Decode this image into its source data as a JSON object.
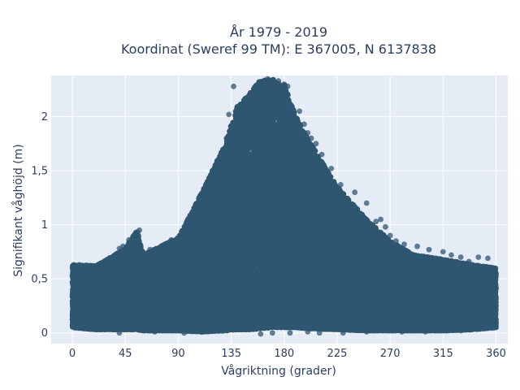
{
  "chart_data": {
    "type": "scatter",
    "title": "År 1979 - 2019",
    "subtitle": "Koordinat (Sweref 99 TM): E 367005, N 6137838",
    "xlabel": "Vågriktning (grader)",
    "ylabel": "Signifikant våghöjd (m)",
    "xlim": [
      -18,
      370
    ],
    "ylim": [
      -0.1,
      2.38
    ],
    "x_ticks": [
      {
        "value": 0,
        "label": "0"
      },
      {
        "value": 45,
        "label": "45"
      },
      {
        "value": 90,
        "label": "90"
      },
      {
        "value": 135,
        "label": "135"
      },
      {
        "value": 180,
        "label": "180"
      },
      {
        "value": 225,
        "label": "225"
      },
      {
        "value": 270,
        "label": "270"
      },
      {
        "value": 315,
        "label": "315"
      },
      {
        "value": 360,
        "label": "360"
      }
    ],
    "y_ticks": [
      {
        "value": 0,
        "label": "0"
      },
      {
        "value": 0.5,
        "label": "0,5"
      },
      {
        "value": 1,
        "label": "1"
      },
      {
        "value": 1.5,
        "label": "1,5"
      },
      {
        "value": 2,
        "label": "2"
      }
    ],
    "grid": true,
    "plot_background": "#e5ecf6",
    "grid_color": "#ffffff",
    "marker_color": "#2f5670",
    "marker_opacity": 0.75,
    "envelope": {
      "x": [
        0,
        20,
        45,
        55,
        60,
        90,
        110,
        130,
        140,
        150,
        160,
        170,
        180,
        190,
        200,
        225,
        250,
        270,
        290,
        315,
        340,
        360
      ],
      "y_max": [
        0.63,
        0.62,
        0.78,
        0.95,
        0.72,
        0.88,
        1.3,
        1.75,
        2.1,
        2.2,
        2.35,
        2.35,
        2.3,
        2.0,
        1.8,
        1.35,
        1.05,
        0.85,
        0.72,
        0.68,
        0.63,
        0.6
      ],
      "y_min": [
        0.05,
        0.03,
        0.03,
        0.03,
        0.02,
        0.02,
        0.01,
        0.02,
        0.03,
        0.03,
        0.04,
        0.05,
        0.05,
        0.05,
        0.04,
        0.03,
        0.02,
        0.02,
        0.02,
        0.02,
        0.03,
        0.05
      ]
    },
    "points": [
      [
        137,
        2.28
      ],
      [
        160,
        2.27
      ],
      [
        166,
        2.35
      ],
      [
        170,
        2.34
      ],
      [
        175,
        2.33
      ],
      [
        180,
        2.3
      ],
      [
        183,
        2.28
      ],
      [
        153,
        2.21
      ],
      [
        148,
        2.1
      ],
      [
        144,
        2.05
      ],
      [
        133,
        2.02
      ],
      [
        131,
        1.8
      ],
      [
        129,
        1.7
      ],
      [
        193,
        2.05
      ],
      [
        197,
        1.93
      ],
      [
        200,
        1.85
      ],
      [
        203,
        1.8
      ],
      [
        207,
        1.75
      ],
      [
        212,
        1.65
      ],
      [
        220,
        1.52
      ],
      [
        228,
        1.37
      ],
      [
        240,
        1.3
      ],
      [
        250,
        1.2
      ],
      [
        258,
        1.03
      ],
      [
        262,
        1.05
      ],
      [
        266,
        0.98
      ],
      [
        270,
        0.9
      ],
      [
        275,
        0.85
      ],
      [
        282,
        0.82
      ],
      [
        293,
        0.8
      ],
      [
        303,
        0.77
      ],
      [
        315,
        0.75
      ],
      [
        322,
        0.72
      ],
      [
        330,
        0.7
      ],
      [
        337,
        0.66
      ],
      [
        345,
        0.7
      ],
      [
        353,
        0.69
      ],
      [
        358,
        0.58
      ],
      [
        2,
        0.62
      ],
      [
        6,
        0.63
      ],
      [
        10,
        0.6
      ],
      [
        18,
        0.62
      ],
      [
        24,
        0.62
      ],
      [
        31,
        0.63
      ],
      [
        40,
        0.78
      ],
      [
        43,
        0.8
      ],
      [
        48,
        0.86
      ],
      [
        51,
        0.87
      ],
      [
        54,
        0.93
      ],
      [
        57,
        0.95
      ],
      [
        60,
        0.75
      ],
      [
        66,
        0.77
      ],
      [
        72,
        0.73
      ],
      [
        78,
        0.8
      ],
      [
        84,
        0.86
      ],
      [
        91,
        0.9
      ],
      [
        97,
        1.0
      ],
      [
        101,
        1.05
      ],
      [
        105,
        1.13
      ],
      [
        108,
        1.2
      ],
      [
        113,
        1.35
      ],
      [
        118,
        1.4
      ],
      [
        125,
        1.55
      ],
      [
        160,
        -0.01
      ],
      [
        170,
        0.0
      ],
      [
        185,
        0.0
      ],
      [
        200,
        0.01
      ],
      [
        230,
        0.0
      ],
      [
        110,
        0.01
      ],
      [
        70,
        0.01
      ],
      [
        40,
        0.0
      ],
      [
        280,
        0.01
      ],
      [
        300,
        0.01
      ],
      [
        330,
        0.02
      ],
      [
        210,
        0.0
      ],
      [
        95,
        0.0
      ],
      [
        250,
        0.01
      ]
    ],
    "cloud_density": 48000,
    "cloud_seed": 19792019
  }
}
